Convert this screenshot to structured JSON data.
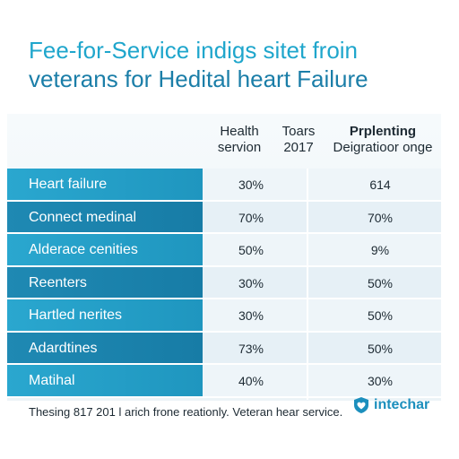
{
  "title": {
    "line1": "Fee-for-Service indigs sitet froin",
    "line2": "veterans for Hedital heart Failure"
  },
  "table": {
    "headers": {
      "col1": [
        "Health",
        "servion"
      ],
      "col2": [
        "Toars",
        "2017"
      ],
      "col3": [
        "Prplenting",
        "Deigratioor onge"
      ]
    },
    "rows": [
      {
        "label": "Heart failure",
        "v1": "30%",
        "v2": "614"
      },
      {
        "label": "Connect medinal",
        "v1": "70%",
        "v2": "70%"
      },
      {
        "label": "Alderace cenities",
        "v1": "50%",
        "v2": "9%"
      },
      {
        "label": "Reenters",
        "v1": "30%",
        "v2": "50%"
      },
      {
        "label": "Hartled nerites",
        "v1": "30%",
        "v2": "50%"
      },
      {
        "label": "Adardtines",
        "v1": "73%",
        "v2": "50%"
      },
      {
        "label": "Matihal",
        "v1": "40%",
        "v2": "30%"
      }
    ]
  },
  "footer": {
    "note": "Thesing 817 201 l arich frone reationly. Veteran hear service.",
    "brand_name": "intechar",
    "brand_icon": "heart-shield-icon"
  },
  "colors": {
    "accent": "#1fa6cc",
    "row_label_bg": "#2aa7cf",
    "row_label_bg_alt": "#1f89b3",
    "brand": "#1c8fbd"
  }
}
